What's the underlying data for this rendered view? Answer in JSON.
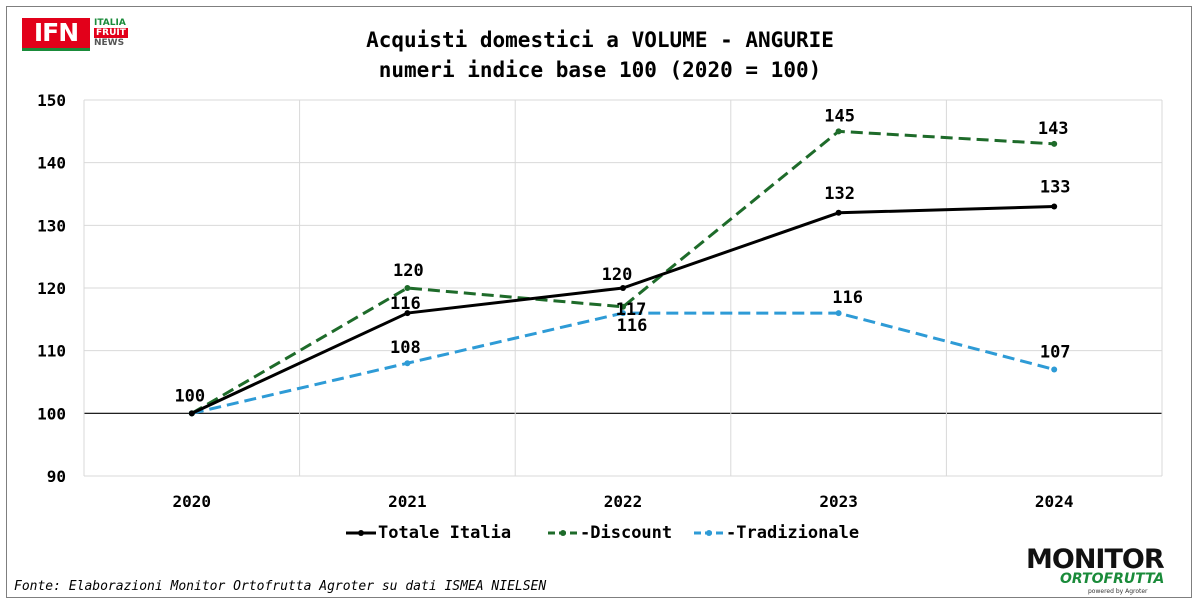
{
  "logo_top_left": {
    "main": "IFN",
    "line1": "ITALIA",
    "line2": "FRUIT",
    "line3": "NEWS"
  },
  "logo_bottom_right": {
    "main": "MONITOR",
    "sub": "ORTOFRUTTA",
    "powered": "powered by Agroter"
  },
  "source_note": "Fonte: Elaborazioni Monitor Ortofrutta Agroter su dati ISMEA NIELSEN",
  "chart_data": {
    "type": "line",
    "title": "Acquisti domestici a VOLUME - ANGURIE",
    "subtitle": "numeri indice base 100 (2020 = 100)",
    "categories": [
      "2020",
      "2021",
      "2022",
      "2023",
      "2024"
    ],
    "ylim": [
      90,
      150
    ],
    "yticks": [
      "90",
      "100",
      "110",
      "120",
      "130",
      "140",
      "150"
    ],
    "grid": true,
    "reference_line": 100,
    "legend_position": "bottom",
    "series": [
      {
        "name": "Totale Italia",
        "color": "#000000",
        "dash": "solid",
        "values": [
          100,
          116,
          120,
          132,
          133
        ],
        "labels": [
          "100",
          "116",
          "120",
          "132",
          "133"
        ]
      },
      {
        "name": "Discount",
        "color": "#1e6b2a",
        "dash": "dashed",
        "values": [
          100,
          120,
          117,
          145,
          143
        ],
        "labels": [
          "",
          "120",
          "117",
          "145",
          "143"
        ]
      },
      {
        "name": "Tradizionale",
        "color": "#2e9bd6",
        "dash": "dashed",
        "values": [
          100,
          108,
          116,
          116,
          107
        ],
        "labels": [
          "",
          "108",
          "116",
          "116",
          "107"
        ]
      }
    ]
  }
}
